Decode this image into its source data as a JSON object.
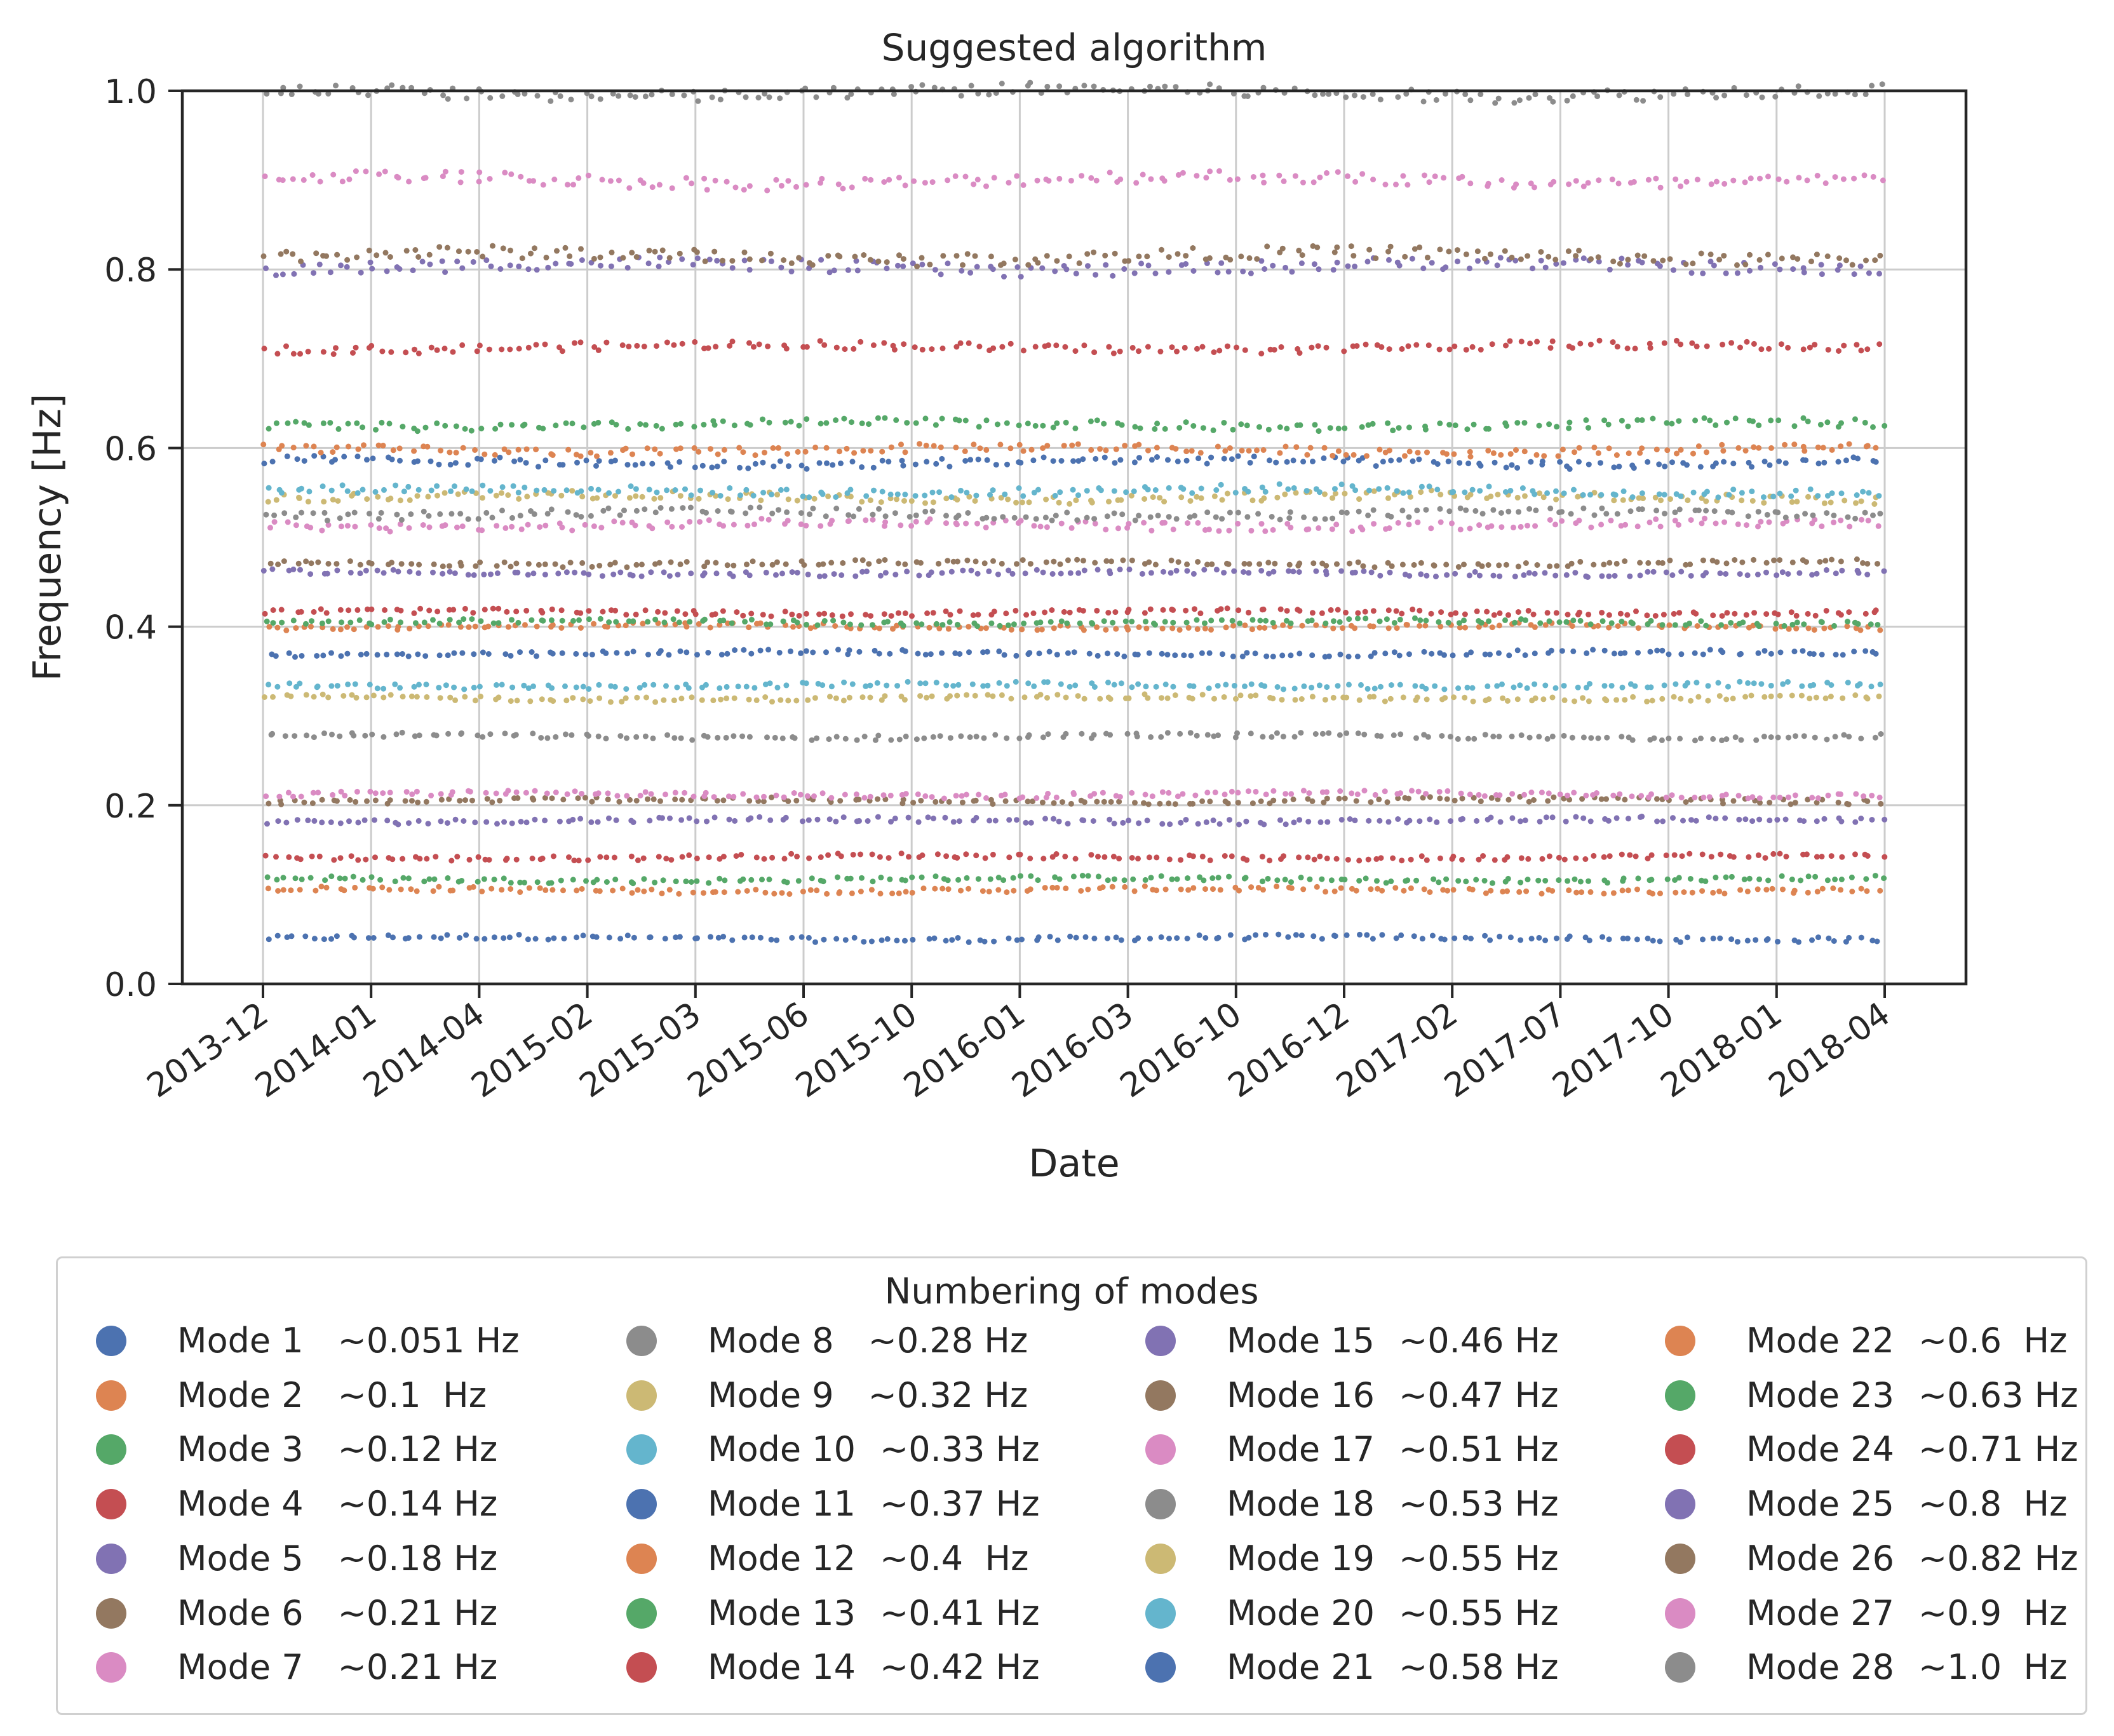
{
  "chart_data": {
    "type": "scatter",
    "title": "Suggested algorithm",
    "xlabel": "Date",
    "ylabel": "Frequency [Hz]",
    "ylim": [
      0.0,
      1.0
    ],
    "yticks": [
      "0.0",
      "0.2",
      "0.4",
      "0.6",
      "0.8",
      "1.0"
    ],
    "xticks": [
      "2013-12",
      "2014-01",
      "2014-04",
      "2015-02",
      "2015-03",
      "2015-06",
      "2015-10",
      "2016-01",
      "2016-03",
      "2016-10",
      "2016-12",
      "2017-02",
      "2017-07",
      "2017-10",
      "2018-01",
      "2018-04"
    ],
    "grid": true,
    "legend_position": "below",
    "legend_title": "Numbering of modes",
    "series": [
      {
        "name": "Mode 1",
        "label": "~0.051 Hz",
        "value": 0.051,
        "color": "#4c72b0"
      },
      {
        "name": "Mode 2",
        "label": "~0.1  Hz",
        "value": 0.105,
        "color": "#dd8452"
      },
      {
        "name": "Mode 3",
        "label": "~0.12 Hz",
        "value": 0.117,
        "color": "#55a868"
      },
      {
        "name": "Mode 4",
        "label": "~0.14 Hz",
        "value": 0.142,
        "color": "#c44e52"
      },
      {
        "name": "Mode 5",
        "label": "~0.18 Hz",
        "value": 0.183,
        "color": "#8172b3"
      },
      {
        "name": "Mode 6",
        "label": "~0.21 Hz",
        "value": 0.205,
        "color": "#937860"
      },
      {
        "name": "Mode 7",
        "label": "~0.21 Hz",
        "value": 0.212,
        "color": "#da8bc3"
      },
      {
        "name": "Mode 8",
        "label": "~0.28 Hz",
        "value": 0.277,
        "color": "#8c8c8c"
      },
      {
        "name": "Mode 9",
        "label": "~0.32 Hz",
        "value": 0.32,
        "color": "#ccb974"
      },
      {
        "name": "Mode 10",
        "label": "~0.33 Hz",
        "value": 0.334,
        "color": "#64b5cd"
      },
      {
        "name": "Mode 11",
        "label": "~0.37 Hz",
        "value": 0.37,
        "color": "#4c72b0"
      },
      {
        "name": "Mode 12",
        "label": "~0.4  Hz",
        "value": 0.4,
        "color": "#dd8452"
      },
      {
        "name": "Mode 13",
        "label": "~0.41 Hz",
        "value": 0.405,
        "color": "#55a868"
      },
      {
        "name": "Mode 14",
        "label": "~0.42 Hz",
        "value": 0.416,
        "color": "#c44e52"
      },
      {
        "name": "Mode 15",
        "label": "~0.46 Hz",
        "value": 0.46,
        "color": "#8172b3"
      },
      {
        "name": "Mode 16",
        "label": "~0.47 Hz",
        "value": 0.471,
        "color": "#937860"
      },
      {
        "name": "Mode 17",
        "label": "~0.51 Hz",
        "value": 0.514,
        "color": "#da8bc3"
      },
      {
        "name": "Mode 18",
        "label": "~0.53 Hz",
        "value": 0.526,
        "color": "#8c8c8c"
      },
      {
        "name": "Mode 19",
        "label": "~0.55 Hz",
        "value": 0.545,
        "color": "#ccb974"
      },
      {
        "name": "Mode 20",
        "label": "~0.55 Hz",
        "value": 0.552,
        "color": "#64b5cd"
      },
      {
        "name": "Mode 21",
        "label": "~0.58 Hz",
        "value": 0.584,
        "color": "#4c72b0"
      },
      {
        "name": "Mode 22",
        "label": "~0.6  Hz",
        "value": 0.598,
        "color": "#dd8452"
      },
      {
        "name": "Mode 23",
        "label": "~0.63 Hz",
        "value": 0.626,
        "color": "#55a868"
      },
      {
        "name": "Mode 24",
        "label": "~0.71 Hz",
        "value": 0.713,
        "color": "#c44e52"
      },
      {
        "name": "Mode 25",
        "label": "~0.8  Hz",
        "value": 0.803,
        "color": "#8172b3"
      },
      {
        "name": "Mode 26",
        "label": "~0.82 Hz",
        "value": 0.815,
        "color": "#937860"
      },
      {
        "name": "Mode 27",
        "label": "~0.9  Hz",
        "value": 0.9,
        "color": "#da8bc3"
      },
      {
        "name": "Mode 28",
        "label": "~1.0  Hz",
        "value": 0.998,
        "color": "#8c8c8c"
      }
    ]
  }
}
